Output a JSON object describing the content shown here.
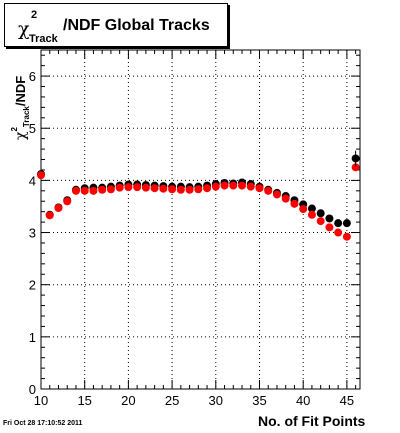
{
  "chart_data": {
    "type": "scatter",
    "title_parts": {
      "symbol": "χ",
      "superscript": "2",
      "subscript": "Track",
      "text": "/NDF  Global Tracks"
    },
    "ylabel_parts": {
      "symbol": "χ",
      "superscript": "2",
      "subscript": "Track",
      "text": "/NDF"
    },
    "xlabel": "No. of Fit Points",
    "xlim": [
      10,
      46.5
    ],
    "ylim": [
      0,
      6.5
    ],
    "grid": true,
    "x_ticks": [
      {
        "value": 10,
        "label": "10"
      },
      {
        "value": 15,
        "label": "15"
      },
      {
        "value": 20,
        "label": "20"
      },
      {
        "value": 25,
        "label": "25"
      },
      {
        "value": 30,
        "label": "30"
      },
      {
        "value": 35,
        "label": "35"
      },
      {
        "value": 40,
        "label": "40"
      },
      {
        "value": 45,
        "label": "45"
      }
    ],
    "y_ticks": [
      {
        "value": 0,
        "label": "0"
      },
      {
        "value": 1,
        "label": "1"
      },
      {
        "value": 2,
        "label": "2"
      },
      {
        "value": 3,
        "label": "3"
      },
      {
        "value": 4,
        "label": "4"
      },
      {
        "value": 5,
        "label": "5"
      },
      {
        "value": 6,
        "label": "6"
      }
    ],
    "series": [
      {
        "color": "#000000",
        "points": [
          [
            10,
            4.12
          ],
          [
            11,
            3.34
          ],
          [
            12,
            3.48
          ],
          [
            13,
            3.62
          ],
          [
            14,
            3.82
          ],
          [
            15,
            3.85
          ],
          [
            16,
            3.86
          ],
          [
            17,
            3.86
          ],
          [
            18,
            3.88
          ],
          [
            19,
            3.9
          ],
          [
            20,
            3.92
          ],
          [
            21,
            3.92
          ],
          [
            22,
            3.91
          ],
          [
            23,
            3.9
          ],
          [
            24,
            3.89
          ],
          [
            25,
            3.88
          ],
          [
            26,
            3.88
          ],
          [
            27,
            3.87
          ],
          [
            28,
            3.88
          ],
          [
            29,
            3.9
          ],
          [
            30,
            3.93
          ],
          [
            31,
            3.95
          ],
          [
            32,
            3.94
          ],
          [
            33,
            3.96
          ],
          [
            34,
            3.93
          ],
          [
            35,
            3.88
          ],
          [
            36,
            3.82
          ],
          [
            37,
            3.76
          ],
          [
            38,
            3.7
          ],
          [
            39,
            3.62
          ],
          [
            40,
            3.54
          ],
          [
            41,
            3.46
          ],
          [
            42,
            3.37
          ],
          [
            43,
            3.27
          ],
          [
            44,
            3.18
          ],
          [
            45,
            3.18
          ],
          [
            46,
            4.42
          ]
        ]
      },
      {
        "color": "#ff0000",
        "points": [
          [
            10,
            4.1
          ],
          [
            11,
            3.33
          ],
          [
            12,
            3.47
          ],
          [
            13,
            3.6
          ],
          [
            14,
            3.8
          ],
          [
            15,
            3.8
          ],
          [
            16,
            3.8
          ],
          [
            17,
            3.82
          ],
          [
            18,
            3.83
          ],
          [
            19,
            3.86
          ],
          [
            20,
            3.87
          ],
          [
            21,
            3.87
          ],
          [
            22,
            3.86
          ],
          [
            23,
            3.85
          ],
          [
            24,
            3.84
          ],
          [
            25,
            3.83
          ],
          [
            26,
            3.82
          ],
          [
            27,
            3.82
          ],
          [
            28,
            3.83
          ],
          [
            29,
            3.85
          ],
          [
            30,
            3.88
          ],
          [
            31,
            3.9
          ],
          [
            32,
            3.9
          ],
          [
            33,
            3.9
          ],
          [
            34,
            3.88
          ],
          [
            35,
            3.85
          ],
          [
            36,
            3.8
          ],
          [
            37,
            3.73
          ],
          [
            38,
            3.65
          ],
          [
            39,
            3.55
          ],
          [
            40,
            3.45
          ],
          [
            41,
            3.34
          ],
          [
            42,
            3.22
          ],
          [
            43,
            3.1
          ],
          [
            44,
            3.0
          ],
          [
            45,
            2.92
          ],
          [
            46,
            4.25
          ]
        ]
      }
    ]
  },
  "footer": {
    "timestamp": "Fri Oct 28 17:10:52 2011"
  }
}
